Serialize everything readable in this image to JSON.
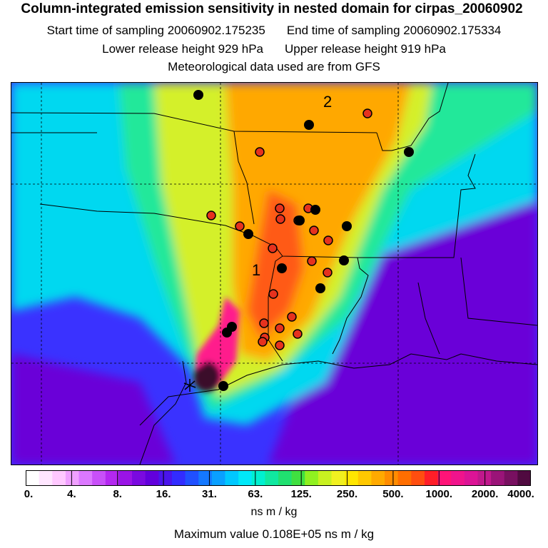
{
  "header": {
    "title": "Column-integrated emission sensitivity in nested domain for cirpas_20060902",
    "start_time": "Start time of sampling 20060902.175235",
    "end_time": "End time of sampling 20060902.175334",
    "lower_release": "Lower release height  929 hPa",
    "upper_release": "Upper release height  919 hPa",
    "met_data": "Meteorological data used are from GFS"
  },
  "map": {
    "cluster_labels": [
      "1",
      "2"
    ],
    "palette": {
      "lowest": "#6a00d8",
      "low": "#3a32ff",
      "mid_low": "#00d8f0",
      "mid": "#24e89a",
      "mid_high": "#d4f02a",
      "high": "#ffa800",
      "higher": "#ff5a18",
      "very_high": "#ff1a8c",
      "peak": "#3a0c2a",
      "marker_red": "#e6321e",
      "marker_black": "#000000"
    }
  },
  "colorbar": {
    "colors": [
      "#ffffff",
      "#ffe6ff",
      "#ffc8ff",
      "#f0a0ff",
      "#dc78ff",
      "#c850f8",
      "#b428f0",
      "#9a14e6",
      "#7a0ae0",
      "#6200dc",
      "#4a14ec",
      "#322cff",
      "#2050ff",
      "#1478ff",
      "#0aa0ff",
      "#00c8ff",
      "#00e8f8",
      "#00f0d0",
      "#10e8a0",
      "#20e070",
      "#40e040",
      "#90f020",
      "#c8f020",
      "#f0f020",
      "#ffe600",
      "#ffc800",
      "#ffaa00",
      "#ff8c00",
      "#ff6e00",
      "#ff4e10",
      "#ff1e28",
      "#ff1478",
      "#f0148c",
      "#dc1496",
      "#c0188c",
      "#9a1478",
      "#781060",
      "#500a40"
    ],
    "ticks": [
      "0.",
      "4.",
      "8.",
      "16.",
      "31.",
      "63.",
      "125.",
      "250.",
      "500.",
      "1000.",
      "2000.",
      "4000."
    ],
    "units": "ns m / kg"
  },
  "footer": {
    "max_value": "Maximum value  0.108E+05 ns m / kg"
  }
}
